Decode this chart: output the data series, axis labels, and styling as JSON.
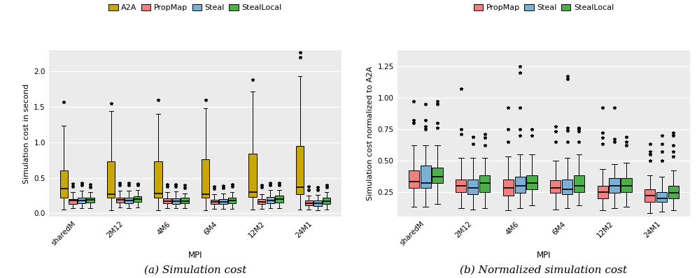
{
  "categories": [
    "sharedM",
    "2M12",
    "4M6",
    "6M4",
    "12M2",
    "24M1"
  ],
  "series_left": [
    "A2A",
    "PropMap",
    "Steal",
    "StealLocal"
  ],
  "series_right": [
    "PropMap",
    "Steal",
    "StealLocal"
  ],
  "colors": {
    "A2A": "#C8A800",
    "PropMap": "#F08080",
    "Steal": "#7BAFD4",
    "StealLocal": "#4DAF4A"
  },
  "left_ylabel": "Simulation cost in second",
  "right_ylabel": "Simulation cost normalized to A2A",
  "xlabel": "MPI",
  "left_caption": "(a) Simulation cost",
  "right_caption": "(b) Normalized simulation cost",
  "bg_color": "#EBEBEB",
  "left_ylim": [
    -0.05,
    2.3
  ],
  "right_ylim": [
    0.05,
    1.38
  ],
  "left_yticks": [
    0.0,
    0.5,
    1.0,
    1.5,
    2.0
  ],
  "right_yticks": [
    0.25,
    0.5,
    0.75,
    1.0,
    1.25
  ],
  "left_data": {
    "A2A": {
      "sharedM": {
        "q1": 0.22,
        "median": 0.35,
        "q3": 0.6,
        "whislo": 0.05,
        "whishi": 1.23,
        "fliers": [
          1.57
        ]
      },
      "2M12": {
        "q1": 0.22,
        "median": 0.27,
        "q3": 0.73,
        "whislo": 0.04,
        "whishi": 1.44,
        "fliers": [
          1.55
        ]
      },
      "4M6": {
        "q1": 0.22,
        "median": 0.28,
        "q3": 0.73,
        "whislo": 0.04,
        "whishi": 1.4,
        "fliers": [
          1.6
        ]
      },
      "6M4": {
        "q1": 0.22,
        "median": 0.27,
        "q3": 0.76,
        "whislo": 0.04,
        "whishi": 1.48,
        "fliers": [
          1.6
        ]
      },
      "12M2": {
        "q1": 0.23,
        "median": 0.3,
        "q3": 0.84,
        "whislo": 0.05,
        "whishi": 1.72,
        "fliers": [
          1.88
        ]
      },
      "24M1": {
        "q1": 0.27,
        "median": 0.37,
        "q3": 0.95,
        "whislo": 0.05,
        "whishi": 1.93,
        "fliers": [
          2.2,
          2.27
        ]
      }
    },
    "PropMap": {
      "sharedM": {
        "q1": 0.13,
        "median": 0.18,
        "q3": 0.2,
        "whislo": 0.07,
        "whishi": 0.3,
        "fliers": [
          0.38,
          0.42
        ]
      },
      "2M12": {
        "q1": 0.15,
        "median": 0.19,
        "q3": 0.22,
        "whislo": 0.08,
        "whishi": 0.32,
        "fliers": [
          0.4,
          0.43
        ]
      },
      "4M6": {
        "q1": 0.14,
        "median": 0.17,
        "q3": 0.21,
        "whislo": 0.07,
        "whishi": 0.3,
        "fliers": [
          0.38,
          0.41
        ]
      },
      "6M4": {
        "q1": 0.13,
        "median": 0.16,
        "q3": 0.19,
        "whislo": 0.06,
        "whishi": 0.27,
        "fliers": [
          0.35,
          0.38
        ]
      },
      "12M2": {
        "q1": 0.13,
        "median": 0.16,
        "q3": 0.2,
        "whislo": 0.06,
        "whishi": 0.27,
        "fliers": [
          0.37,
          0.4
        ]
      },
      "24M1": {
        "q1": 0.11,
        "median": 0.14,
        "q3": 0.18,
        "whislo": 0.05,
        "whishi": 0.25,
        "fliers": [
          0.33,
          0.38
        ]
      }
    },
    "Steal": {
      "sharedM": {
        "q1": 0.14,
        "median": 0.18,
        "q3": 0.22,
        "whislo": 0.07,
        "whishi": 0.32,
        "fliers": [
          0.4,
          0.43
        ]
      },
      "2M12": {
        "q1": 0.14,
        "median": 0.18,
        "q3": 0.22,
        "whislo": 0.07,
        "whishi": 0.32,
        "fliers": [
          0.4,
          0.43
        ]
      },
      "4M6": {
        "q1": 0.13,
        "median": 0.17,
        "q3": 0.21,
        "whislo": 0.07,
        "whishi": 0.31,
        "fliers": [
          0.38,
          0.41
        ]
      },
      "6M4": {
        "q1": 0.13,
        "median": 0.16,
        "q3": 0.2,
        "whislo": 0.06,
        "whishi": 0.28,
        "fliers": [
          0.36,
          0.39
        ]
      },
      "12M2": {
        "q1": 0.14,
        "median": 0.18,
        "q3": 0.23,
        "whislo": 0.07,
        "whishi": 0.33,
        "fliers": [
          0.4,
          0.43
        ]
      },
      "24M1": {
        "q1": 0.1,
        "median": 0.14,
        "q3": 0.18,
        "whislo": 0.04,
        "whishi": 0.26,
        "fliers": [
          0.33,
          0.37
        ]
      }
    },
    "StealLocal": {
      "sharedM": {
        "q1": 0.15,
        "median": 0.19,
        "q3": 0.22,
        "whislo": 0.07,
        "whishi": 0.3,
        "fliers": [
          0.37,
          0.41
        ]
      },
      "2M12": {
        "q1": 0.16,
        "median": 0.2,
        "q3": 0.24,
        "whislo": 0.08,
        "whishi": 0.33,
        "fliers": [
          0.4,
          0.42
        ]
      },
      "4M6": {
        "q1": 0.14,
        "median": 0.17,
        "q3": 0.22,
        "whislo": 0.07,
        "whishi": 0.28,
        "fliers": [
          0.36,
          0.4
        ]
      },
      "6M4": {
        "q1": 0.14,
        "median": 0.18,
        "q3": 0.22,
        "whislo": 0.06,
        "whishi": 0.3,
        "fliers": [
          0.38,
          0.41
        ]
      },
      "12M2": {
        "q1": 0.15,
        "median": 0.2,
        "q3": 0.25,
        "whislo": 0.07,
        "whishi": 0.33,
        "fliers": [
          0.4,
          0.43
        ]
      },
      "24M1": {
        "q1": 0.13,
        "median": 0.17,
        "q3": 0.22,
        "whislo": 0.05,
        "whishi": 0.3,
        "fliers": [
          0.37,
          0.4
        ]
      }
    }
  },
  "right_data": {
    "PropMap": {
      "sharedM": {
        "q1": 0.28,
        "median": 0.33,
        "q3": 0.42,
        "whislo": 0.13,
        "whishi": 0.62,
        "fliers": [
          0.8,
          0.82,
          0.97
        ]
      },
      "2M12": {
        "q1": 0.25,
        "median": 0.3,
        "q3": 0.35,
        "whislo": 0.12,
        "whishi": 0.52,
        "fliers": [
          0.71,
          0.75,
          1.07
        ]
      },
      "4M6": {
        "q1": 0.22,
        "median": 0.28,
        "q3": 0.35,
        "whislo": 0.1,
        "whishi": 0.53,
        "fliers": [
          0.65,
          0.75,
          0.92
        ]
      },
      "6M4": {
        "q1": 0.24,
        "median": 0.28,
        "q3": 0.34,
        "whislo": 0.11,
        "whishi": 0.5,
        "fliers": [
          0.65,
          0.73,
          0.77
        ]
      },
      "12M2": {
        "q1": 0.2,
        "median": 0.25,
        "q3": 0.3,
        "whislo": 0.1,
        "whishi": 0.43,
        "fliers": [
          0.63,
          0.68,
          0.72,
          0.92
        ]
      },
      "24M1": {
        "q1": 0.17,
        "median": 0.22,
        "q3": 0.27,
        "whislo": 0.08,
        "whishi": 0.38,
        "fliers": [
          0.5,
          0.55,
          0.57,
          0.63
        ]
      }
    },
    "Steal": {
      "sharedM": {
        "q1": 0.28,
        "median": 0.32,
        "q3": 0.46,
        "whislo": 0.13,
        "whishi": 0.62,
        "fliers": [
          0.75,
          0.77,
          0.82,
          0.95
        ]
      },
      "2M12": {
        "q1": 0.23,
        "median": 0.28,
        "q3": 0.35,
        "whislo": 0.11,
        "whishi": 0.52,
        "fliers": [
          0.63,
          0.69
        ]
      },
      "4M6": {
        "q1": 0.24,
        "median": 0.3,
        "q3": 0.37,
        "whislo": 0.12,
        "whishi": 0.55,
        "fliers": [
          0.7,
          0.75,
          0.92,
          1.2,
          1.25
        ]
      },
      "6M4": {
        "q1": 0.23,
        "median": 0.27,
        "q3": 0.35,
        "whislo": 0.12,
        "whishi": 0.52,
        "fliers": [
          0.65,
          0.74,
          0.76,
          1.15,
          1.17
        ]
      },
      "12M2": {
        "q1": 0.24,
        "median": 0.3,
        "q3": 0.36,
        "whislo": 0.12,
        "whishi": 0.47,
        "fliers": [
          0.65,
          0.67,
          0.92
        ]
      },
      "24M1": {
        "q1": 0.17,
        "median": 0.2,
        "q3": 0.25,
        "whislo": 0.09,
        "whishi": 0.37,
        "fliers": [
          0.5,
          0.57,
          0.63,
          0.7
        ]
      }
    },
    "StealLocal": {
      "sharedM": {
        "q1": 0.32,
        "median": 0.37,
        "q3": 0.44,
        "whislo": 0.15,
        "whishi": 0.62,
        "fliers": [
          0.76,
          0.8,
          0.95,
          0.97
        ]
      },
      "2M12": {
        "q1": 0.25,
        "median": 0.32,
        "q3": 0.38,
        "whislo": 0.12,
        "whishi": 0.52,
        "fliers": [
          0.62,
          0.68,
          0.71
        ]
      },
      "4M6": {
        "q1": 0.27,
        "median": 0.32,
        "q3": 0.38,
        "whislo": 0.14,
        "whishi": 0.55,
        "fliers": [
          0.7,
          0.75
        ]
      },
      "6M4": {
        "q1": 0.25,
        "median": 0.3,
        "q3": 0.38,
        "whislo": 0.14,
        "whishi": 0.55,
        "fliers": [
          0.65,
          0.73,
          0.75,
          0.76
        ]
      },
      "12M2": {
        "q1": 0.25,
        "median": 0.3,
        "q3": 0.36,
        "whislo": 0.13,
        "whishi": 0.48,
        "fliers": [
          0.62,
          0.65,
          0.69
        ]
      },
      "24M1": {
        "q1": 0.2,
        "median": 0.24,
        "q3": 0.3,
        "whislo": 0.1,
        "whishi": 0.42,
        "fliers": [
          0.53,
          0.57,
          0.62,
          0.7,
          0.72
        ]
      }
    }
  }
}
